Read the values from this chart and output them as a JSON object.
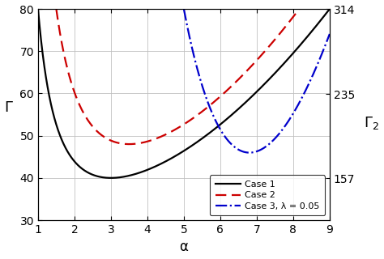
{
  "xlabel": "α",
  "ylabel": "Γ",
  "ylabel2": "Γ_2",
  "xlim": [
    1,
    9
  ],
  "ylim": [
    30,
    80
  ],
  "ylim2_lo": 118.125,
  "ylim2_hi": 314,
  "yticks": [
    30,
    40,
    50,
    60,
    70,
    80
  ],
  "yticks2": [
    157,
    235,
    314
  ],
  "xticks": [
    1,
    2,
    3,
    4,
    5,
    6,
    7,
    8,
    9
  ],
  "case1_color": "#000000",
  "case2_color": "#cc0000",
  "case3_color": "#0000cc",
  "legend_labels": [
    "Case 1",
    "Case 2",
    "Case 3, λ = 0.05"
  ],
  "figsize": [
    4.74,
    3.2
  ],
  "dpi": 100,
  "case1_a": 50.625,
  "case1_b": 0.625,
  "case1_c": 28.75,
  "case2_a": 108.045,
  "case2_b": 0.72,
  "case2_c": 30.36,
  "case2_alpha_start": 1.45,
  "case3_a": 3543.5,
  "case3_b": 1.476,
  "case3_c": -98.6,
  "case3_alpha_start": 4.88
}
